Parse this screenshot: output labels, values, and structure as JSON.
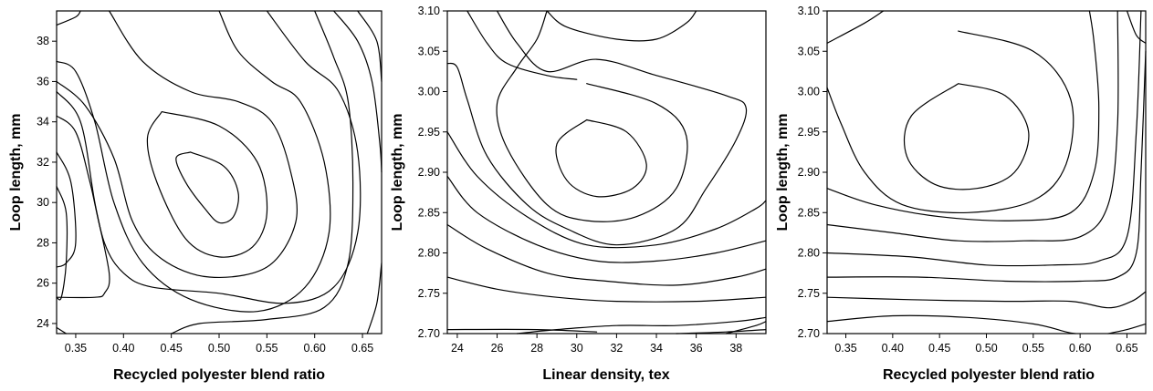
{
  "chart_data": [
    {
      "type": "contour",
      "xlabel": "Recycled polyester blend ratio",
      "ylabel": "Loop length, mm",
      "xlim": [
        0.33,
        0.67
      ],
      "ylim": [
        23.5,
        39.5
      ],
      "xticks": [
        0.35,
        0.4,
        0.45,
        0.5,
        0.55,
        0.6,
        0.65
      ],
      "xtick_labels": [
        "0.35",
        "0.40",
        "0.45",
        "0.50",
        "0.55",
        "0.60",
        "0.65"
      ],
      "yticks": [
        24,
        26,
        28,
        30,
        32,
        34,
        36,
        38
      ],
      "ytick_labels": [
        "24",
        "26",
        "28",
        "30",
        "32",
        "34",
        "36",
        "38"
      ],
      "contours": [
        [
          [
            0.47,
            32.5
          ],
          [
            0.505,
            31.8
          ],
          [
            0.52,
            30.5
          ],
          [
            0.515,
            29.3
          ],
          [
            0.5,
            29.0
          ],
          [
            0.485,
            29.7
          ],
          [
            0.465,
            31.0
          ],
          [
            0.455,
            32.2
          ],
          [
            0.47,
            32.5
          ]
        ],
        [
          [
            0.44,
            34.5
          ],
          [
            0.5,
            33.8
          ],
          [
            0.54,
            32.0
          ],
          [
            0.55,
            29.5
          ],
          [
            0.535,
            27.8
          ],
          [
            0.5,
            27.3
          ],
          [
            0.465,
            28.2
          ],
          [
            0.435,
            31.0
          ],
          [
            0.425,
            33.2
          ],
          [
            0.44,
            34.5
          ]
        ],
        [
          [
            0.33,
            36.0
          ],
          [
            0.36,
            34.8
          ],
          [
            0.39,
            32.2
          ],
          [
            0.41,
            29.0
          ],
          [
            0.44,
            27.2
          ],
          [
            0.49,
            26.3
          ],
          [
            0.55,
            26.8
          ],
          [
            0.58,
            29.0
          ],
          [
            0.575,
            31.5
          ],
          [
            0.555,
            34.0
          ],
          [
            0.52,
            35.0
          ],
          [
            0.47,
            35.5
          ],
          [
            0.42,
            37.0
          ],
          [
            0.385,
            39.5
          ]
        ],
        [
          [
            0.33,
            37.0
          ],
          [
            0.35,
            36.5
          ],
          [
            0.37,
            34.0
          ],
          [
            0.39,
            30.0
          ],
          [
            0.42,
            27.0
          ],
          [
            0.47,
            25.2
          ],
          [
            0.54,
            24.6
          ],
          [
            0.59,
            25.8
          ],
          [
            0.615,
            28.5
          ],
          [
            0.61,
            32.0
          ],
          [
            0.585,
            35.0
          ],
          [
            0.555,
            36.0
          ],
          [
            0.52,
            37.5
          ],
          [
            0.5,
            39.5
          ]
        ],
        [
          [
            0.33,
            34.3
          ],
          [
            0.35,
            33.5
          ],
          [
            0.365,
            31.0
          ],
          [
            0.38,
            28.0
          ],
          [
            0.4,
            26.5
          ],
          [
            0.43,
            25.8
          ],
          [
            0.5,
            25.5
          ],
          [
            0.57,
            25.0
          ],
          [
            0.62,
            25.8
          ],
          [
            0.645,
            28.5
          ],
          [
            0.645,
            32.5
          ],
          [
            0.625,
            35.5
          ],
          [
            0.59,
            37.0
          ],
          [
            0.55,
            39.5
          ]
        ],
        [
          [
            0.33,
            32.5
          ],
          [
            0.345,
            31.0
          ],
          [
            0.35,
            28.0
          ],
          [
            0.34,
            27.0
          ],
          [
            0.33,
            26.8
          ]
        ],
        [
          [
            0.33,
            30.8
          ],
          [
            0.34,
            29.5
          ],
          [
            0.34,
            27.0
          ],
          [
            0.335,
            25.3
          ],
          [
            0.33,
            25.3
          ]
        ],
        [
          [
            0.33,
            35.5
          ],
          [
            0.355,
            34.0
          ],
          [
            0.37,
            30.0
          ],
          [
            0.385,
            26.5
          ],
          [
            0.38,
            25.5
          ],
          [
            0.37,
            25.3
          ],
          [
            0.33,
            25.3
          ]
        ],
        [
          [
            0.45,
            23.5
          ],
          [
            0.48,
            24.0
          ],
          [
            0.55,
            24.2
          ],
          [
            0.61,
            24.8
          ],
          [
            0.635,
            27.0
          ],
          [
            0.64,
            31.0
          ],
          [
            0.635,
            35.0
          ],
          [
            0.62,
            37.2
          ],
          [
            0.6,
            39.5
          ]
        ],
        [
          [
            0.33,
            38.8
          ],
          [
            0.35,
            39.2
          ],
          [
            0.355,
            39.5
          ]
        ],
        [
          [
            0.33,
            23.8
          ],
          [
            0.34,
            23.5
          ]
        ],
        [
          [
            0.62,
            39.5
          ],
          [
            0.645,
            38.0
          ],
          [
            0.66,
            36.0
          ],
          [
            0.668,
            33.0
          ],
          [
            0.67,
            31.5
          ]
        ],
        [
          [
            0.645,
            39.5
          ],
          [
            0.665,
            38.0
          ],
          [
            0.67,
            36.0
          ]
        ],
        [
          [
            0.655,
            23.5
          ],
          [
            0.665,
            25.0
          ],
          [
            0.67,
            27.0
          ]
        ]
      ]
    },
    {
      "type": "contour",
      "xlabel": "Linear density, tex",
      "ylabel": "Loop length, mm",
      "xlim": [
        23.5,
        39.5
      ],
      "ylim": [
        2.7,
        3.1
      ],
      "xticks": [
        24,
        26,
        28,
        30,
        32,
        34,
        36,
        38
      ],
      "xtick_labels": [
        "24",
        "26",
        "28",
        "30",
        "32",
        "34",
        "36",
        "38"
      ],
      "yticks": [
        2.7,
        2.75,
        2.8,
        2.85,
        2.9,
        2.95,
        3.0,
        3.05,
        3.1
      ],
      "ytick_labels": [
        "2.70",
        "2.75",
        "2.80",
        "2.85",
        "2.90",
        "2.95",
        "3.00",
        "3.05",
        "3.10"
      ],
      "contours": [
        [
          [
            30.5,
            2.965
          ],
          [
            32.5,
            2.95
          ],
          [
            33.5,
            2.91
          ],
          [
            32.8,
            2.88
          ],
          [
            31.0,
            2.87
          ],
          [
            29.5,
            2.89
          ],
          [
            29.0,
            2.935
          ],
          [
            30.5,
            2.965
          ]
        ],
        [
          [
            30.5,
            3.01
          ],
          [
            34.0,
            2.985
          ],
          [
            35.5,
            2.945
          ],
          [
            35.0,
            2.88
          ],
          [
            33.0,
            2.845
          ],
          [
            30.5,
            2.84
          ],
          [
            28.5,
            2.86
          ],
          [
            26.5,
            2.93
          ],
          [
            26.0,
            2.985
          ],
          [
            27.0,
            3.03
          ],
          [
            28.0,
            3.065
          ],
          [
            28.5,
            3.1
          ]
        ],
        [
          [
            26.0,
            3.1
          ],
          [
            27.0,
            3.06
          ],
          [
            28.5,
            3.025
          ],
          [
            31.0,
            3.04
          ],
          [
            34.0,
            3.02
          ],
          [
            37.5,
            2.995
          ],
          [
            38.5,
            2.98
          ],
          [
            38.0,
            2.94
          ],
          [
            36.5,
            2.88
          ],
          [
            35.0,
            2.83
          ],
          [
            32.0,
            2.81
          ],
          [
            29.5,
            2.83
          ],
          [
            27.5,
            2.86
          ],
          [
            25.5,
            2.92
          ],
          [
            24.5,
            2.99
          ],
          [
            24.0,
            3.03
          ],
          [
            23.5,
            3.035
          ]
        ],
        [
          [
            23.5,
            2.95
          ],
          [
            25.0,
            2.895
          ],
          [
            27.5,
            2.845
          ],
          [
            30.5,
            2.81
          ],
          [
            34.0,
            2.81
          ],
          [
            37.0,
            2.83
          ],
          [
            39.0,
            2.855
          ],
          [
            39.5,
            2.865
          ]
        ],
        [
          [
            23.5,
            2.895
          ],
          [
            25.0,
            2.85
          ],
          [
            28.0,
            2.81
          ],
          [
            31.0,
            2.79
          ],
          [
            34.0,
            2.79
          ],
          [
            37.0,
            2.8
          ],
          [
            39.5,
            2.815
          ]
        ],
        [
          [
            23.5,
            2.835
          ],
          [
            25.5,
            2.805
          ],
          [
            28.5,
            2.775
          ],
          [
            31.5,
            2.765
          ],
          [
            35.0,
            2.76
          ],
          [
            38.0,
            2.77
          ],
          [
            39.5,
            2.78
          ]
        ],
        [
          [
            23.5,
            2.77
          ],
          [
            26.0,
            2.755
          ],
          [
            29.0,
            2.745
          ],
          [
            32.0,
            2.74
          ],
          [
            36.0,
            2.74
          ],
          [
            39.5,
            2.745
          ]
        ],
        [
          [
            27.0,
            2.7
          ],
          [
            29.0,
            2.705
          ],
          [
            32.0,
            2.71
          ],
          [
            35.0,
            2.71
          ],
          [
            38.0,
            2.715
          ],
          [
            39.5,
            2.72
          ]
        ],
        [
          [
            23.5,
            2.705
          ],
          [
            28.0,
            2.705
          ],
          [
            31.0,
            2.702
          ]
        ],
        [
          [
            35.0,
            2.7
          ],
          [
            37.5,
            2.702
          ],
          [
            39.5,
            2.705
          ]
        ],
        [
          [
            37.5,
            2.7
          ],
          [
            39.0,
            2.71
          ],
          [
            39.5,
            2.715
          ]
        ],
        [
          [
            28.5,
            3.1
          ],
          [
            29.5,
            3.08
          ],
          [
            32.0,
            3.065
          ],
          [
            34.0,
            3.065
          ],
          [
            35.5,
            3.085
          ],
          [
            36.0,
            3.1
          ]
        ],
        [
          [
            24.5,
            3.1
          ],
          [
            25.5,
            3.06
          ],
          [
            26.5,
            3.035
          ],
          [
            28.5,
            3.02
          ],
          [
            30.0,
            3.015
          ]
        ]
      ]
    },
    {
      "type": "contour",
      "xlabel": "Recycled polyester blend ratio",
      "ylabel": "Loop length, mm",
      "xlim": [
        0.33,
        0.67
      ],
      "ylim": [
        2.7,
        3.1
      ],
      "xticks": [
        0.35,
        0.4,
        0.45,
        0.5,
        0.55,
        0.6,
        0.65
      ],
      "xtick_labels": [
        "0.35",
        "0.40",
        "0.45",
        "0.50",
        "0.55",
        "0.60",
        "0.65"
      ],
      "yticks": [
        2.7,
        2.75,
        2.8,
        2.85,
        2.9,
        2.95,
        3.0,
        3.05,
        3.1
      ],
      "ytick_labels": [
        "2.70",
        "2.75",
        "2.80",
        "2.85",
        "2.90",
        "2.95",
        "3.00",
        "3.05",
        "3.10"
      ],
      "contours": [
        [
          [
            0.47,
            3.01
          ],
          [
            0.52,
            2.995
          ],
          [
            0.545,
            2.95
          ],
          [
            0.53,
            2.9
          ],
          [
            0.49,
            2.88
          ],
          [
            0.445,
            2.885
          ],
          [
            0.415,
            2.92
          ],
          [
            0.42,
            2.97
          ],
          [
            0.47,
            3.01
          ]
        ],
        [
          [
            0.47,
            3.075
          ],
          [
            0.55,
            3.05
          ],
          [
            0.59,
            2.99
          ],
          [
            0.585,
            2.91
          ],
          [
            0.55,
            2.865
          ],
          [
            0.48,
            2.85
          ],
          [
            0.41,
            2.86
          ],
          [
            0.37,
            2.9
          ],
          [
            0.345,
            2.96
          ],
          [
            0.33,
            3.005
          ]
        ],
        [
          [
            0.33,
            3.06
          ],
          [
            0.37,
            3.085
          ],
          [
            0.39,
            3.1
          ]
        ],
        [
          [
            0.33,
            2.88
          ],
          [
            0.38,
            2.86
          ],
          [
            0.45,
            2.845
          ],
          [
            0.53,
            2.84
          ],
          [
            0.59,
            2.85
          ],
          [
            0.615,
            2.9
          ],
          [
            0.62,
            2.98
          ],
          [
            0.615,
            3.06
          ],
          [
            0.61,
            3.1
          ]
        ],
        [
          [
            0.33,
            2.835
          ],
          [
            0.4,
            2.825
          ],
          [
            0.47,
            2.815
          ],
          [
            0.54,
            2.815
          ],
          [
            0.6,
            2.82
          ],
          [
            0.63,
            2.86
          ],
          [
            0.64,
            2.96
          ],
          [
            0.64,
            3.1
          ]
        ],
        [
          [
            0.33,
            2.8
          ],
          [
            0.42,
            2.795
          ],
          [
            0.5,
            2.785
          ],
          [
            0.57,
            2.785
          ],
          [
            0.62,
            2.79
          ],
          [
            0.65,
            2.82
          ],
          [
            0.66,
            2.95
          ],
          [
            0.665,
            3.1
          ]
        ],
        [
          [
            0.33,
            2.77
          ],
          [
            0.43,
            2.77
          ],
          [
            0.52,
            2.765
          ],
          [
            0.6,
            2.765
          ],
          [
            0.64,
            2.77
          ],
          [
            0.66,
            2.8
          ],
          [
            0.665,
            2.9
          ],
          [
            0.67,
            3.05
          ]
        ],
        [
          [
            0.33,
            2.745
          ],
          [
            0.42,
            2.742
          ],
          [
            0.52,
            2.74
          ],
          [
            0.59,
            2.74
          ],
          [
            0.63,
            2.732
          ],
          [
            0.655,
            2.74
          ],
          [
            0.67,
            2.752
          ]
        ],
        [
          [
            0.33,
            2.715
          ],
          [
            0.4,
            2.722
          ],
          [
            0.48,
            2.72
          ],
          [
            0.55,
            2.712
          ],
          [
            0.585,
            2.702
          ],
          [
            0.595,
            2.7
          ]
        ],
        [
          [
            0.65,
            3.1
          ],
          [
            0.66,
            3.07
          ],
          [
            0.67,
            3.06
          ]
        ],
        [
          [
            0.63,
            2.7
          ],
          [
            0.65,
            2.705
          ],
          [
            0.67,
            2.712
          ]
        ]
      ]
    }
  ]
}
